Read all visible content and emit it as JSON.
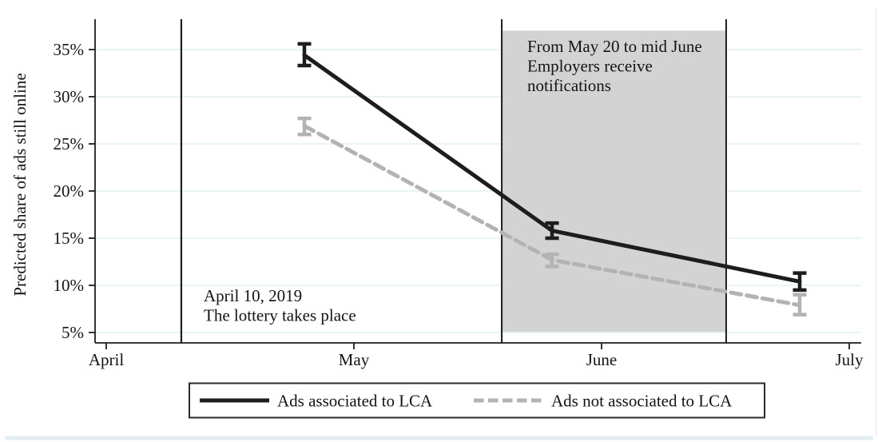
{
  "figure": {
    "background": "#ffffff",
    "bottom_strip_color": "#e2edf1",
    "right_border_color": "#e6eaec"
  },
  "chart_data": {
    "type": "line",
    "title": "",
    "xlabel": "",
    "ylabel": "Predicted share of ads still online",
    "unit": "percent",
    "grid": "horizontal",
    "gridline_color": "#e4eff2",
    "axis_color": "#1d1d1d",
    "x_axis": {
      "tick_labels": [
        "April",
        "May",
        "June",
        "July"
      ],
      "tick_positions": [
        0,
        1,
        2,
        3
      ],
      "range": [
        -0.045,
        3.05
      ]
    },
    "y_axis": {
      "tick_labels": [
        "5%",
        "10%",
        "15%",
        "20%",
        "25%",
        "30%",
        "35%"
      ],
      "tick_values": [
        5,
        10,
        15,
        20,
        25,
        30,
        35
      ],
      "ylim": [
        3.9,
        38.3
      ]
    },
    "series": [
      {
        "name": "Ads associated to LCA",
        "color": "#1d1d1d",
        "line_style": "solid",
        "x": [
          0.8,
          1.8,
          2.8
        ],
        "x_description": [
          "late April 2019",
          "late May 2019",
          "late June 2019"
        ],
        "values": [
          34.4,
          15.8,
          10.4
        ],
        "ci_low": [
          33.3,
          15.0,
          9.5
        ],
        "ci_high": [
          35.6,
          16.6,
          11.3
        ]
      },
      {
        "name": "Ads not associated to LCA",
        "color": "#b3b3b3",
        "line_style": "dashed",
        "x": [
          0.8,
          1.8,
          2.8
        ],
        "x_description": [
          "late April 2019",
          "late May 2019",
          "late June 2019"
        ],
        "values": [
          26.9,
          12.7,
          7.9
        ],
        "ci_low": [
          26.0,
          12.0,
          6.9
        ],
        "ci_high": [
          27.7,
          13.3,
          9.0
        ]
      }
    ],
    "vline": {
      "x": 0.303,
      "color": "#1d1d1d",
      "label_lines": [
        "April 10, 2019",
        "The lottery takes place"
      ]
    },
    "shaded_region": {
      "x_start": 1.597,
      "x_end": 2.503,
      "y_low": 5.08,
      "y_high": 37.0,
      "fill_color": "#d3d3d3",
      "border_color": "#1d1d1d",
      "label_lines": [
        "From May 20 to mid June",
        "Employers receive",
        "notifications"
      ]
    },
    "legend": {
      "position": "bottom-center",
      "border": true,
      "entries": [
        "Ads associated to LCA",
        "Ads not associated to LCA"
      ]
    }
  }
}
